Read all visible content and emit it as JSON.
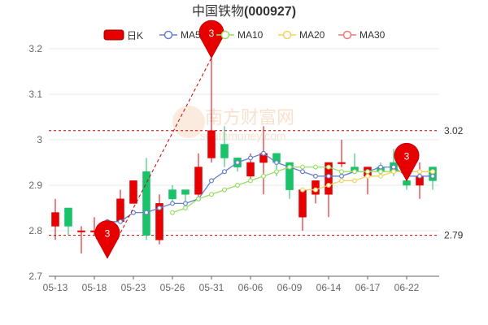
{
  "chart_data": {
    "type": "candlestick",
    "title": {
      "company": "中国铁物",
      "code": "(000927)"
    },
    "watermark": {
      "cn": "南方财富网",
      "url": "southmoney.com"
    },
    "ylim": [
      2.7,
      3.2
    ],
    "yticks": [
      "2.7",
      "2.8",
      "2.9",
      "3",
      "3.1",
      "3.2"
    ],
    "xticks": [
      "05-13",
      "05-18",
      "05-23",
      "05-26",
      "05-31",
      "06-06",
      "06-09",
      "06-14",
      "06-17",
      "06-22"
    ],
    "legend": [
      {
        "key": "k",
        "label": "日K",
        "color": "#e60000"
      },
      {
        "key": "ma5",
        "label": "MA5",
        "color": "#6680cc"
      },
      {
        "key": "ma10",
        "label": "MA10",
        "color": "#99dd66"
      },
      {
        "key": "ma20",
        "label": "MA20",
        "color": "#f5d060"
      },
      {
        "key": "ma30",
        "label": "MA30",
        "color": "#f07878"
      }
    ],
    "colors": {
      "up": "#e60000",
      "down": "#19c36a",
      "ref": "#cc0000",
      "grid": "#e8e8e8",
      "axis": "#666666"
    },
    "candles": [
      {
        "d": "05-13",
        "o": 2.81,
        "c": 2.84,
        "h": 2.87,
        "l": 2.78
      },
      {
        "d": "05-16",
        "o": 2.85,
        "c": 2.81,
        "h": 2.85,
        "l": 2.79
      },
      {
        "d": "05-17",
        "o": 2.8,
        "c": 2.8,
        "h": 2.81,
        "l": 2.75
      },
      {
        "d": "05-18",
        "o": 2.8,
        "c": 2.8,
        "h": 2.83,
        "l": 2.79
      },
      {
        "d": "05-19",
        "o": 2.8,
        "c": 2.82,
        "h": 2.82,
        "l": 2.74
      },
      {
        "d": "05-20",
        "o": 2.82,
        "c": 2.87,
        "h": 2.89,
        "l": 2.82
      },
      {
        "d": "05-23",
        "o": 2.86,
        "c": 2.91,
        "h": 2.91,
        "l": 2.86
      },
      {
        "d": "05-24",
        "o": 2.93,
        "c": 2.79,
        "h": 2.96,
        "l": 2.78
      },
      {
        "d": "05-25",
        "o": 2.78,
        "c": 2.86,
        "h": 2.88,
        "l": 2.77
      },
      {
        "d": "05-26",
        "o": 2.89,
        "c": 2.87,
        "h": 2.9,
        "l": 2.86
      },
      {
        "d": "05-27",
        "o": 2.89,
        "c": 2.88,
        "h": 2.89,
        "l": 2.86
      },
      {
        "d": "05-30",
        "o": 2.88,
        "c": 2.94,
        "h": 2.97,
        "l": 2.87
      },
      {
        "d": "05-31",
        "o": 2.96,
        "c": 3.02,
        "h": 3.18,
        "l": 2.95
      },
      {
        "d": "06-01",
        "o": 2.99,
        "c": 2.96,
        "h": 3.03,
        "l": 2.94
      },
      {
        "d": "06-02",
        "o": 2.96,
        "c": 2.94,
        "h": 2.96,
        "l": 2.93
      },
      {
        "d": "06-06",
        "o": 2.92,
        "c": 2.95,
        "h": 2.97,
        "l": 2.91
      },
      {
        "d": "06-07",
        "o": 2.95,
        "c": 2.97,
        "h": 3.03,
        "l": 2.88
      },
      {
        "d": "06-08",
        "o": 2.97,
        "c": 2.95,
        "h": 2.97,
        "l": 2.92
      },
      {
        "d": "06-09",
        "o": 2.95,
        "c": 2.89,
        "h": 2.95,
        "l": 2.87
      },
      {
        "d": "06-10",
        "o": 2.83,
        "c": 2.89,
        "h": 2.89,
        "l": 2.8
      },
      {
        "d": "06-13",
        "o": 2.88,
        "c": 2.91,
        "h": 2.91,
        "l": 2.86
      },
      {
        "d": "06-14",
        "o": 2.88,
        "c": 2.95,
        "h": 2.95,
        "l": 2.83
      },
      {
        "d": "06-15",
        "o": 2.95,
        "c": 2.95,
        "h": 3.0,
        "l": 2.94
      },
      {
        "d": "06-16",
        "o": 2.94,
        "c": 2.93,
        "h": 2.97,
        "l": 2.93
      },
      {
        "d": "06-17",
        "o": 2.92,
        "c": 2.94,
        "h": 2.94,
        "l": 2.88
      },
      {
        "d": "06-20",
        "o": 2.94,
        "c": 2.93,
        "h": 2.95,
        "l": 2.92
      },
      {
        "d": "06-21",
        "o": 2.95,
        "c": 2.93,
        "h": 2.98,
        "l": 2.92
      },
      {
        "d": "06-22",
        "o": 2.91,
        "c": 2.9,
        "h": 2.91,
        "l": 2.89
      },
      {
        "d": "06-23",
        "o": 2.9,
        "c": 2.92,
        "h": 2.95,
        "l": 2.87
      },
      {
        "d": "06-24",
        "o": 2.94,
        "c": 2.91,
        "h": 2.94,
        "l": 2.89
      }
    ],
    "ma5": [
      null,
      null,
      null,
      null,
      2.82,
      2.82,
      2.84,
      2.84,
      2.85,
      2.86,
      2.86,
      2.87,
      2.91,
      2.93,
      2.95,
      2.96,
      2.97,
      2.95,
      2.94,
      2.93,
      2.92,
      2.92,
      2.92,
      2.93,
      2.93,
      2.94,
      2.94,
      2.92,
      2.92,
      2.92
    ],
    "ma10": [
      null,
      null,
      null,
      null,
      null,
      null,
      null,
      null,
      null,
      2.84,
      2.85,
      2.87,
      2.88,
      2.89,
      2.9,
      2.91,
      2.92,
      2.93,
      2.94,
      2.94,
      2.94,
      2.94,
      2.93,
      2.93,
      2.93,
      2.93,
      2.93,
      2.93,
      2.93,
      2.93
    ],
    "ma20": [
      null,
      null,
      null,
      null,
      null,
      null,
      null,
      null,
      null,
      null,
      null,
      null,
      null,
      null,
      null,
      null,
      null,
      null,
      null,
      2.89,
      2.89,
      2.9,
      2.91,
      2.91,
      2.92,
      2.92,
      2.93,
      2.93,
      2.93,
      2.93
    ],
    "ma30": [],
    "ref_high": {
      "value": 3.02,
      "label": "3.02"
    },
    "ref_low": {
      "value": 2.79,
      "label": "2.79"
    },
    "markers": [
      {
        "label": "3",
        "index": 12,
        "value": 3.18
      },
      {
        "label": "3",
        "index": 4,
        "value": 2.74
      },
      {
        "label": "3",
        "index": 27,
        "value": 2.91
      }
    ]
  }
}
